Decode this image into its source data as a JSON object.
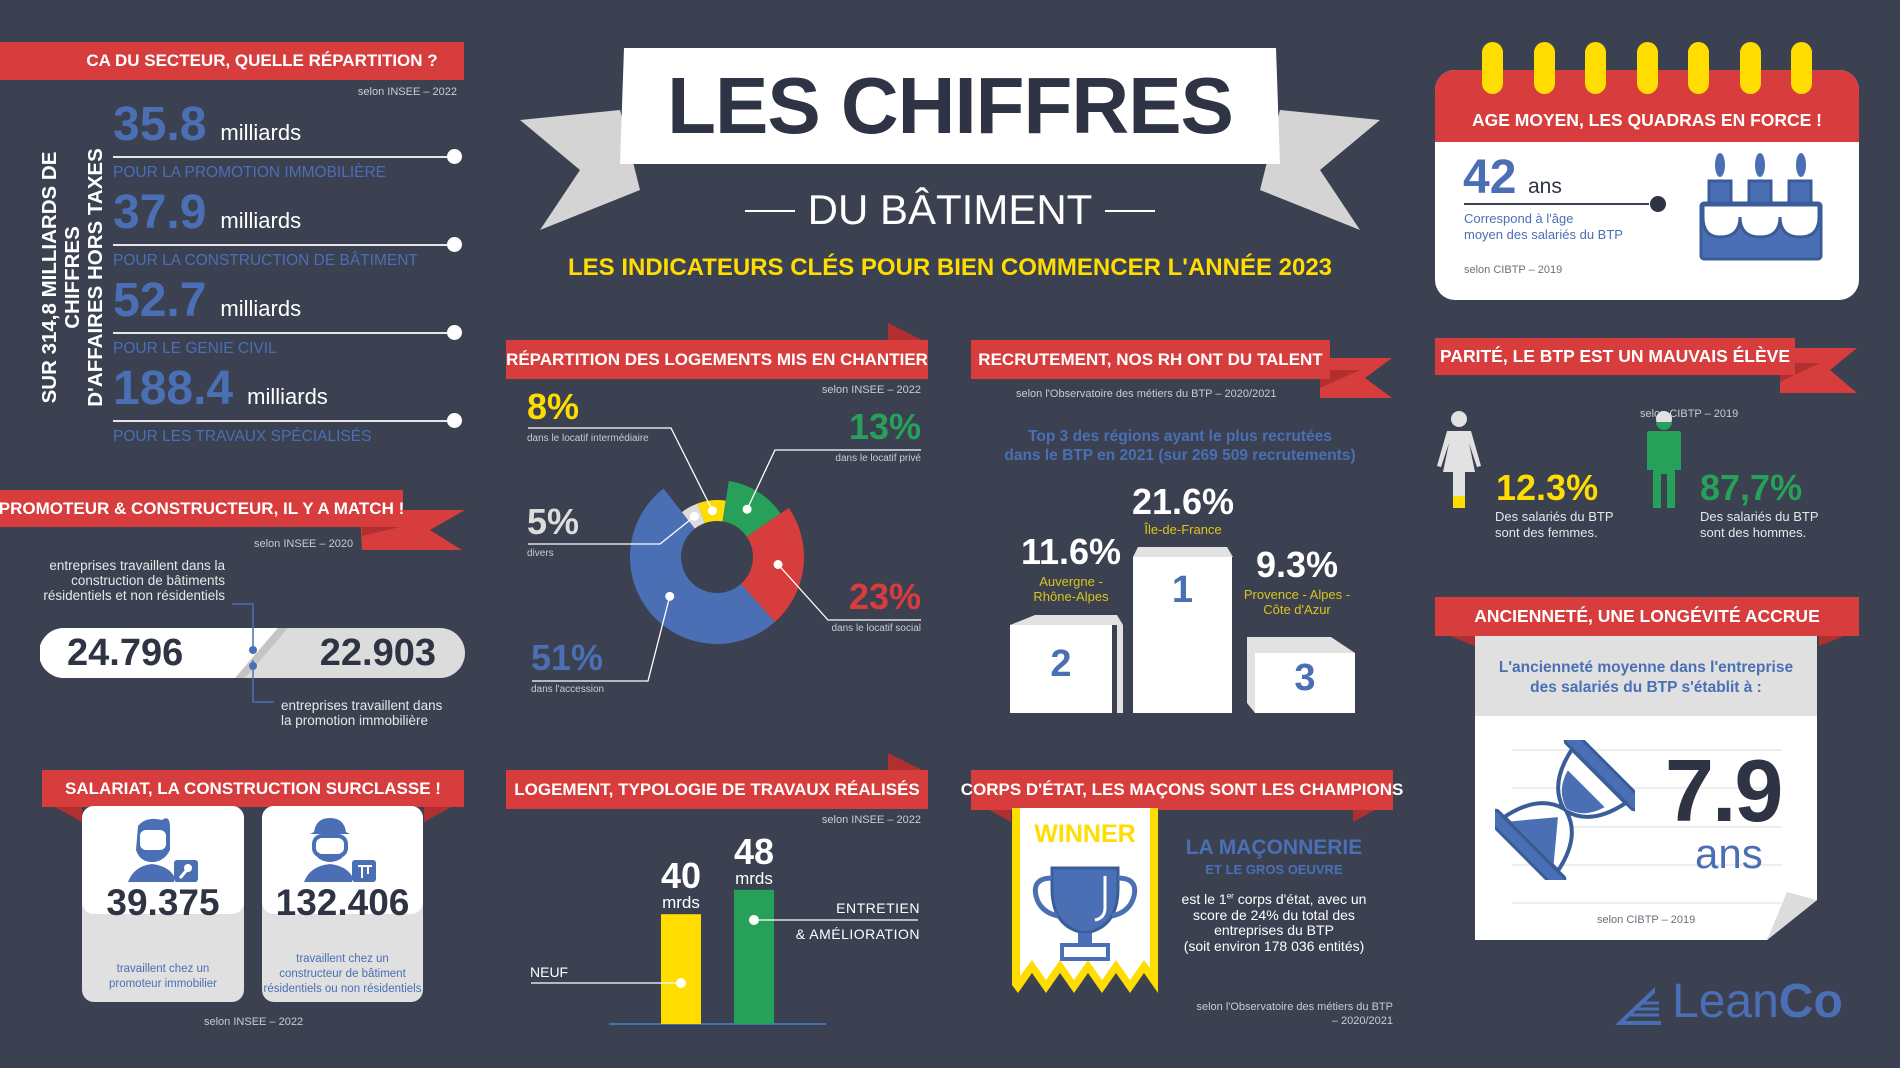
{
  "header": {
    "title": "LES CHIFFRES",
    "subtitle": "DU BÂTIMENT",
    "tagline": "LES INDICATEURS CLÉS POUR BIEN COMMENCER L'ANNÉE 2023"
  },
  "ca": {
    "title": "CA DU SECTEUR, QUELLE RÉPARTITION ?",
    "source": "selon INSEE – 2022",
    "vertical_line1": "SUR 314,8 MILLIARDS DE CHIFFRES",
    "vertical_line2": "D'AFFAIRES HORS TAXES",
    "items": [
      {
        "value": "35.8",
        "unit": "milliards",
        "label": "POUR LA PROMOTION IMMOBILIÈRE"
      },
      {
        "value": "37.9",
        "unit": "milliards",
        "label": "POUR LA CONSTRUCTION DE BÂTIMENT"
      },
      {
        "value": "52.7",
        "unit": "milliards",
        "label": "POUR LE GENIE CIVIL"
      },
      {
        "value": "188.4",
        "unit": "milliards",
        "label": "POUR LES TRAVAUX SPÉCIALISÉS"
      }
    ]
  },
  "match": {
    "title": "PROMOTEUR & CONSTRUCTEUR, IL Y A MATCH !",
    "source": "selon INSEE – 2020",
    "left_value": "24.796",
    "right_value": "22.903",
    "left_desc": [
      "entreprises travaillent dans la",
      "construction de bâtiments",
      "résidentiels et non résidentiels"
    ],
    "right_desc": [
      "entreprises travaillent dans",
      "la promotion immobilière"
    ]
  },
  "salariat": {
    "title": "SALARIAT, LA CONSTRUCTION SURCLASSE !",
    "source": "selon INSEE – 2022",
    "cards": [
      {
        "value": "39.375",
        "desc": [
          "travaillent chez un",
          "promoteur immobilier"
        ]
      },
      {
        "value": "132.406",
        "desc": [
          "travaillent chez un",
          "constructeur de bâtiment",
          "résidentiels ou non résidentiels"
        ]
      }
    ]
  },
  "logements": {
    "title": "RÉPARTITION DES LOGEMENTS MIS EN CHANTIER",
    "source": "selon INSEE – 2022"
  },
  "travaux": {
    "title": "LOGEMENT, TYPOLOGIE DE TRAVAUX RÉALISÉS",
    "source": "selon INSEE – 2022"
  },
  "recrutement": {
    "title": "RECRUTEMENT, NOS RH ONT DU TALENT",
    "source": "selon l'Observatoire des métiers du BTP – 2020/2021",
    "subtitle1": "Top 3 des régions ayant le plus recrutées",
    "subtitle2": "dans le BTP en 2021 (sur 269 509 recrutements)",
    "podium": [
      {
        "rank": "1",
        "value": "21.6%",
        "region": "Île-de-France"
      },
      {
        "rank": "2",
        "value": "11.6%",
        "region": "Auvergne - Rhône-Alpes"
      },
      {
        "rank": "3",
        "value": "9.3%",
        "region": "Provence - Alpes - Côte d'Azur"
      }
    ]
  },
  "corps": {
    "title": "CORPS D'ÉTAT, LES MAÇONS SONT LES CHAMPIONS",
    "winner": "WINNER",
    "headline": "LA MAÇONNERIE",
    "subhead": "ET LE GROS OEUVRE",
    "body_pre": "est le 1",
    "body_sup": "er",
    "body_line1": " corps d'état, avec un",
    "body_line2": "score de 24% du total des",
    "body_line3": "entreprises du BTP",
    "body_line4": "(soit environ 178 036 entités)",
    "source1": "selon l'Observatoire des métiers du BTP",
    "source2": "– 2020/2021"
  },
  "age": {
    "title": "AGE MOYEN, LES QUADRAS EN FORCE !",
    "value": "42",
    "unit": "ans",
    "desc1": "Correspond à l'âge",
    "desc2": "moyen des salariés du BTP",
    "source": "selon CIBTP – 2019"
  },
  "parite": {
    "title": "PARITÉ, LE BTP EST UN MAUVAIS ÉLÈVE",
    "source": "selon CIBTP – 2019",
    "women_value": "12.3%",
    "women_desc1": "Des salariés du BTP",
    "women_desc2": "sont des femmes.",
    "men_value": "87,7%",
    "men_desc1": "Des salariés du BTP",
    "men_desc2": "sont des hommes."
  },
  "anciennete": {
    "title": "ANCIENNETÉ, UNE LONGÉVITÉ ACCRUE",
    "desc1": "L'ancienneté moyenne dans l'entreprise",
    "desc2": "des salariés du BTP s'établit à :",
    "value": "7.9",
    "unit": "ans",
    "source": "selon CIBTP – 2019"
  },
  "logo": {
    "light": "Lean",
    "bold": "Co"
  },
  "colors": {
    "background": "#3b4150",
    "red": "#d83d3d",
    "blue": "#4a6fb5",
    "yellow": "#ffdd00",
    "green": "#27a05a",
    "gray": "#dcdcdc"
  },
  "chart_data": [
    {
      "type": "pie",
      "title": "RÉPARTITION DES LOGEMENTS MIS EN CHANTIER",
      "slices": [
        {
          "label": "dans le locatif intermédiaire",
          "value": 8,
          "display": "8%",
          "color": "#ffdd00"
        },
        {
          "label": "dans le locatif privé",
          "value": 13,
          "display": "13%",
          "color": "#27a05a"
        },
        {
          "label": "dans le locatif social",
          "value": 23,
          "display": "23%",
          "color": "#d83d3d"
        },
        {
          "label": "dans l'accession",
          "value": 51,
          "display": "51%",
          "color": "#4a6fb5"
        },
        {
          "label": "divers",
          "value": 5,
          "display": "5%",
          "color": "#dcdcdc"
        }
      ]
    },
    {
      "type": "bar",
      "title": "LOGEMENT, TYPOLOGIE DE TRAVAUX RÉALISÉS",
      "categories": [
        "NEUF",
        "ENTRETIEN & AMÉLIORATION"
      ],
      "values": [
        40,
        48
      ],
      "value_labels": [
        "40",
        "48"
      ],
      "unit": "mrds",
      "colors": [
        "#ffdd00",
        "#27a05a"
      ]
    }
  ]
}
